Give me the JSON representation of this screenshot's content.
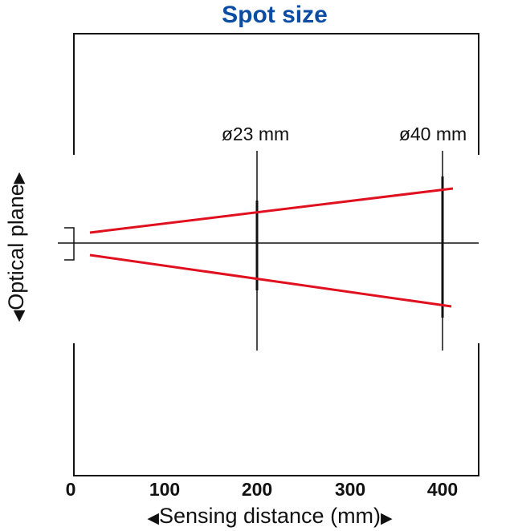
{
  "title": "Spot size",
  "x_axis": {
    "label": "Sensing distance (mm)",
    "left_arrow": "◀",
    "right_arrow": "▶",
    "ticks": [
      "0",
      "100",
      "200",
      "300",
      "400"
    ]
  },
  "y_axis": {
    "label": "Optical plane",
    "arrow_start": "◀",
    "arrow_end": "▶"
  },
  "annotations": [
    {
      "distance_mm": 200,
      "label": "ø23 mm"
    },
    {
      "distance_mm": 400,
      "label": "ø40 mm"
    }
  ],
  "colors": {
    "title": "#0b4da2",
    "beam": "#e0101e",
    "ink": "#111111"
  }
}
